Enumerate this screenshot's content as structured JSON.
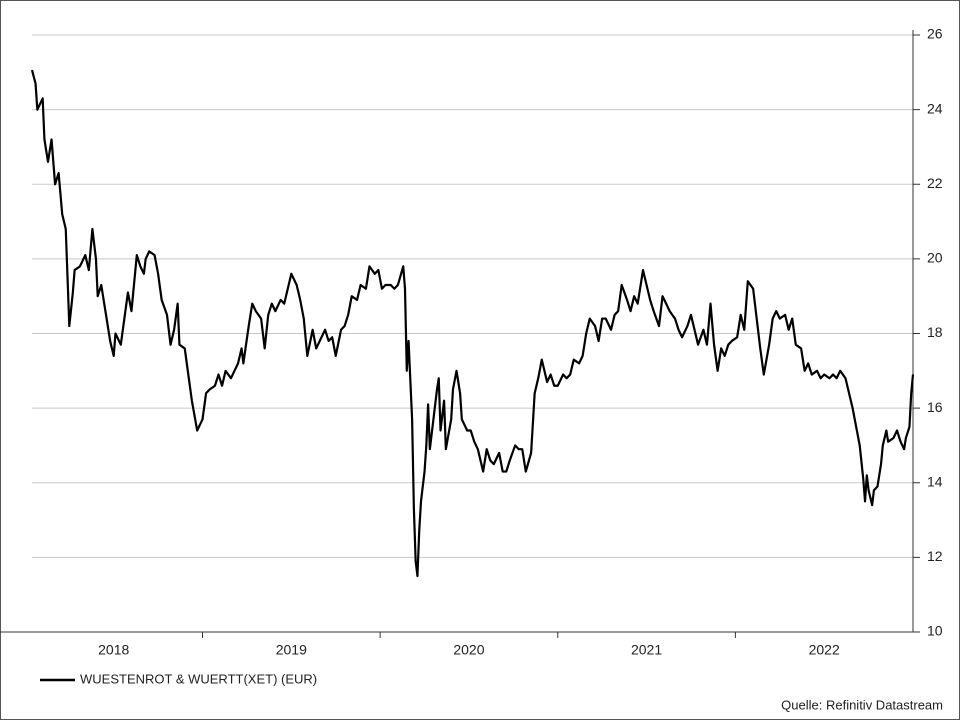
{
  "chart_data": {
    "type": "line",
    "legend": "bottom-left",
    "source": "Quelle: Refinitiv Datastream",
    "grid": true,
    "y_axis_side": "right",
    "xlim": [
      2018.04,
      2023.0
    ],
    "xticks": [
      {
        "value": 2018.5,
        "label": "2018"
      },
      {
        "value": 2019.5,
        "label": "2019"
      },
      {
        "value": 2020.5,
        "label": "2020"
      },
      {
        "value": 2021.5,
        "label": "2021"
      },
      {
        "value": 2022.5,
        "label": "2022"
      }
    ],
    "xtick_marks": [
      2019,
      2020,
      2021,
      2022
    ],
    "ylim": [
      10,
      26
    ],
    "yticks": [
      10,
      12,
      14,
      16,
      18,
      20,
      22,
      24,
      26
    ],
    "x": [
      2018.04,
      2018.06,
      2018.07,
      2018.1,
      2018.11,
      2018.13,
      2018.15,
      2018.17,
      2018.19,
      2018.21,
      2018.23,
      2018.25,
      2018.27,
      2018.28,
      2018.31,
      2018.34,
      2018.36,
      2018.38,
      2018.4,
      2018.41,
      2018.43,
      2018.46,
      2018.48,
      2018.5,
      2018.51,
      2018.54,
      2018.56,
      2018.58,
      2018.6,
      2018.63,
      2018.65,
      2018.67,
      2018.68,
      2018.7,
      2018.73,
      2018.75,
      2018.77,
      2018.8,
      2018.82,
      2018.84,
      2018.86,
      2018.87,
      2018.9,
      2018.92,
      2018.94,
      2018.97,
      2019.0,
      2019.02,
      2019.04,
      2019.07,
      2019.09,
      2019.11,
      2019.13,
      2019.16,
      2019.18,
      2019.2,
      2019.22,
      2019.23,
      2019.26,
      2019.28,
      2019.3,
      2019.33,
      2019.35,
      2019.37,
      2019.39,
      2019.41,
      2019.44,
      2019.46,
      2019.48,
      2019.5,
      2019.53,
      2019.55,
      2019.57,
      2019.59,
      2019.62,
      2019.64,
      2019.66,
      2019.69,
      2019.71,
      2019.73,
      2019.75,
      2019.78,
      2019.8,
      2019.82,
      2019.84,
      2019.87,
      2019.89,
      2019.92,
      2019.94,
      2019.97,
      2019.99,
      2020.01,
      2020.03,
      2020.06,
      2020.08,
      2020.1,
      2020.13,
      2020.14,
      2020.15,
      2020.16,
      2020.18,
      2020.19,
      2020.2,
      2020.21,
      2020.22,
      2020.23,
      2020.25,
      2020.26,
      2020.27,
      2020.28,
      2020.3,
      2020.32,
      2020.33,
      2020.34,
      2020.36,
      2020.37,
      2020.4,
      2020.41,
      2020.43,
      2020.45,
      2020.46,
      2020.49,
      2020.51,
      2020.53,
      2020.55,
      2020.58,
      2020.6,
      2020.62,
      2020.64,
      2020.67,
      2020.69,
      2020.71,
      2020.73,
      2020.76,
      2020.78,
      2020.8,
      2020.82,
      2020.85,
      2020.87,
      2020.89,
      2020.91,
      2020.94,
      2020.96,
      2020.98,
      2021.0,
      2021.03,
      2021.05,
      2021.07,
      2021.09,
      2021.12,
      2021.14,
      2021.16,
      2021.18,
      2021.21,
      2021.23,
      2021.25,
      2021.27,
      2021.3,
      2021.32,
      2021.34,
      2021.36,
      2021.39,
      2021.41,
      2021.43,
      2021.45,
      2021.48,
      2021.5,
      2021.52,
      2021.54,
      2021.57,
      2021.59,
      2021.61,
      2021.63,
      2021.66,
      2021.68,
      2021.7,
      2021.73,
      2021.75,
      2021.77,
      2021.79,
      2021.82,
      2021.84,
      2021.86,
      2021.88,
      2021.9,
      2021.92,
      2021.94,
      2021.96,
      2021.98,
      2022.01,
      2022.03,
      2022.05,
      2022.07,
      2022.1,
      2022.12,
      2022.14,
      2022.16,
      2022.19,
      2022.21,
      2022.23,
      2022.25,
      2022.28,
      2022.3,
      2022.32,
      2022.34,
      2022.37,
      2022.39,
      2022.41,
      2022.43,
      2022.46,
      2022.48,
      2022.5,
      2022.53,
      2022.55,
      2022.57,
      2022.59,
      2022.62,
      2022.64,
      2022.66,
      2022.68,
      2022.7,
      2022.72,
      2022.73,
      2022.74,
      2022.75,
      2022.77,
      2022.78,
      2022.8,
      2022.82,
      2022.83,
      2022.85,
      2022.86,
      2022.89,
      2022.91,
      2022.93,
      2022.95,
      2022.96,
      2022.98,
      2022.99,
      2023.0
    ],
    "series": [
      {
        "name": "WUESTENROT & WUERTT(XET) (EUR)",
        "color": "#000000",
        "values": [
          25.06,
          24.7,
          24.0,
          24.3,
          23.2,
          22.6,
          23.2,
          22.0,
          22.3,
          21.2,
          20.8,
          18.2,
          19.1,
          19.7,
          19.8,
          20.1,
          19.7,
          20.8,
          20.0,
          19.0,
          19.3,
          18.4,
          17.8,
          17.4,
          18.0,
          17.7,
          18.4,
          19.1,
          18.6,
          20.1,
          19.8,
          19.6,
          20.0,
          20.2,
          20.1,
          19.6,
          18.9,
          18.5,
          17.7,
          18.1,
          18.8,
          17.7,
          17.6,
          16.9,
          16.2,
          15.4,
          15.7,
          16.4,
          16.5,
          16.6,
          16.9,
          16.6,
          17.0,
          16.8,
          17.0,
          17.2,
          17.6,
          17.2,
          18.2,
          18.8,
          18.6,
          18.4,
          17.6,
          18.5,
          18.8,
          18.6,
          18.9,
          18.8,
          19.2,
          19.6,
          19.3,
          18.9,
          18.4,
          17.4,
          18.1,
          17.6,
          17.8,
          18.1,
          17.8,
          17.9,
          17.4,
          18.1,
          18.2,
          18.5,
          19.0,
          18.9,
          19.3,
          19.2,
          19.8,
          19.6,
          19.7,
          19.2,
          19.3,
          19.3,
          19.2,
          19.3,
          19.8,
          19.2,
          17.0,
          17.8,
          15.7,
          13.3,
          11.9,
          11.5,
          12.7,
          13.5,
          14.3,
          15.0,
          16.1,
          14.9,
          15.7,
          16.5,
          16.8,
          15.4,
          16.2,
          14.9,
          15.7,
          16.5,
          17.0,
          16.4,
          15.7,
          15.4,
          15.4,
          15.1,
          14.9,
          14.3,
          14.9,
          14.6,
          14.5,
          14.8,
          14.3,
          14.3,
          14.6,
          15.0,
          14.9,
          14.9,
          14.3,
          14.8,
          16.4,
          16.8,
          17.3,
          16.7,
          16.9,
          16.6,
          16.6,
          16.9,
          16.8,
          16.9,
          17.3,
          17.2,
          17.4,
          18.0,
          18.4,
          18.2,
          17.8,
          18.4,
          18.4,
          18.1,
          18.5,
          18.6,
          19.3,
          18.9,
          18.6,
          19.0,
          18.8,
          19.7,
          19.3,
          18.9,
          18.6,
          18.2,
          19.0,
          18.8,
          18.6,
          18.4,
          18.1,
          17.9,
          18.2,
          18.5,
          18.1,
          17.7,
          18.1,
          17.7,
          18.8,
          17.7,
          17.0,
          17.6,
          17.4,
          17.7,
          17.8,
          17.9,
          18.5,
          18.1,
          19.4,
          19.2,
          18.4,
          17.6,
          16.9,
          17.7,
          18.4,
          18.6,
          18.4,
          18.5,
          18.1,
          18.4,
          17.7,
          17.6,
          17.0,
          17.2,
          16.9,
          17.0,
          16.8,
          16.9,
          16.8,
          16.9,
          16.8,
          17.0,
          16.8,
          16.4,
          16.0,
          15.5,
          15.0,
          14.1,
          13.5,
          14.2,
          13.8,
          13.4,
          13.8,
          13.9,
          14.5,
          15.0,
          15.4,
          15.1,
          15.2,
          15.4,
          15.1,
          14.9,
          15.2,
          15.5,
          16.4,
          16.9
        ]
      }
    ]
  }
}
